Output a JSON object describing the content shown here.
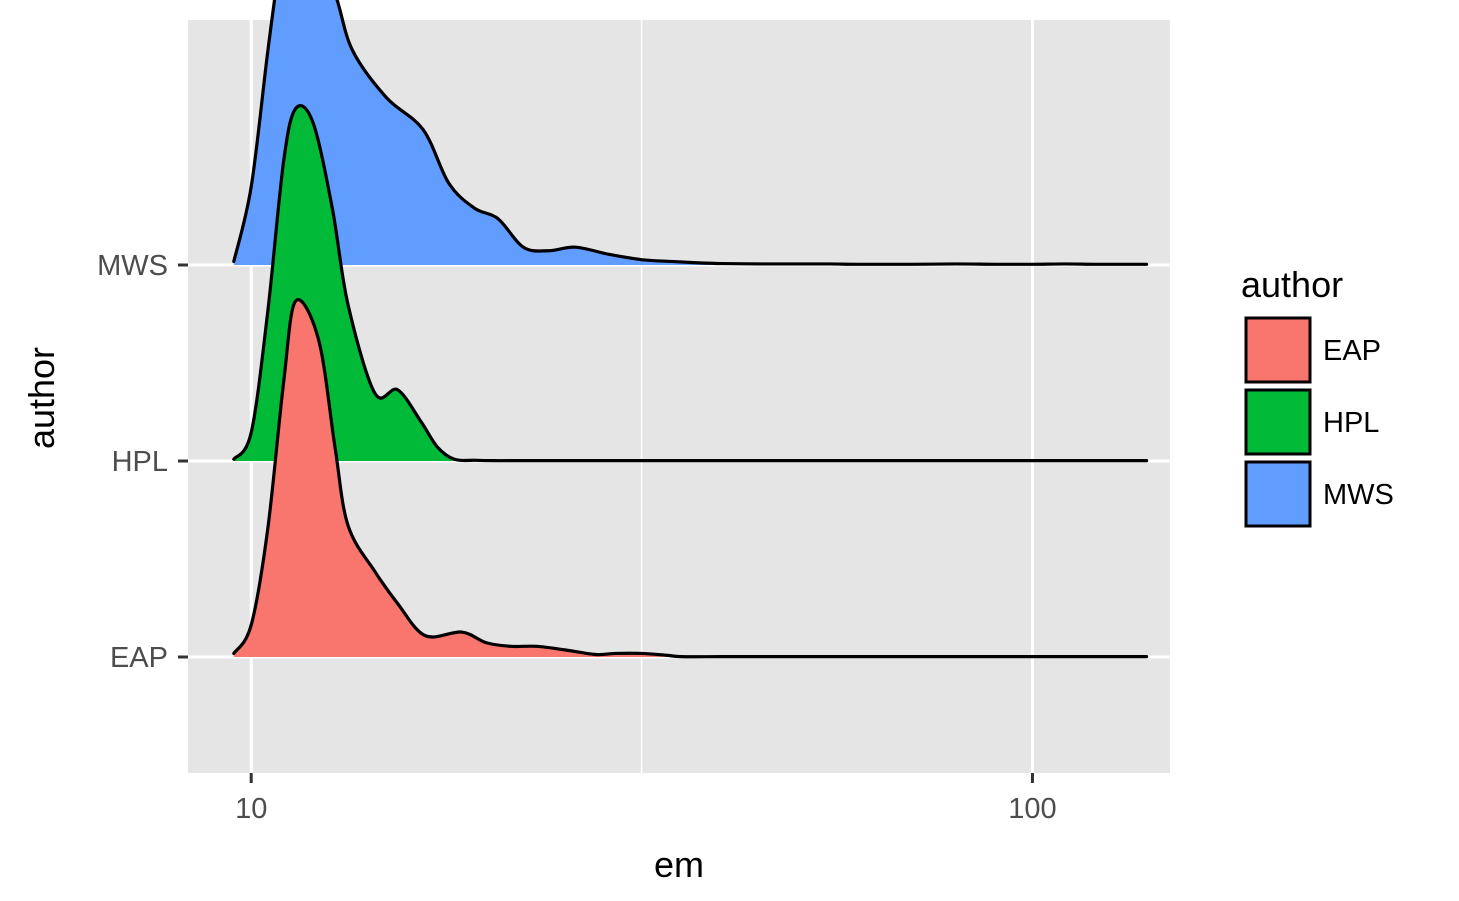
{
  "chart_data": {
    "type": "ridgeline-density",
    "xlabel": "em",
    "ylabel": "author",
    "x_scale": "log10",
    "xlim": [
      8.3,
      150
    ],
    "x_ticks": [
      {
        "value": 10,
        "label": "10"
      },
      {
        "value": 100,
        "label": "100"
      }
    ],
    "x_minor_ticks": [
      31.6
    ],
    "categories": [
      "EAP",
      "HPL",
      "MWS"
    ],
    "grid": true,
    "legend": {
      "title": "author",
      "position": "right",
      "entries": [
        {
          "label": "EAP",
          "color": "#F8766D"
        },
        {
          "label": "HPL",
          "color": "#00BA38"
        },
        {
          "label": "MWS",
          "color": "#619CFF"
        }
      ]
    },
    "series": [
      {
        "name": "EAP",
        "color": "#F8766D",
        "x": [
          9.5,
          10.0,
          10.5,
          11.0,
          11.4,
          12.2,
          12.8,
          13.3,
          14.4,
          15.4,
          16.7,
          18.6,
          20.0,
          21.5,
          23.2,
          25.2,
          27.6,
          29.2,
          31.6,
          34.0,
          35.5,
          40,
          45,
          50,
          55,
          60,
          70,
          80,
          90,
          100,
          110,
          120,
          130,
          140
        ],
        "density": [
          0.01,
          0.09,
          0.36,
          0.77,
          1.0,
          0.89,
          0.59,
          0.37,
          0.24,
          0.15,
          0.06,
          0.07,
          0.04,
          0.03,
          0.03,
          0.02,
          0.007,
          0.01,
          0.01,
          0.005,
          0.001,
          0.001,
          0.001,
          0.001,
          0.001,
          0.001,
          0.001,
          0.001,
          0.001,
          0.001,
          0.001,
          0.001,
          0.001,
          0.001
        ]
      },
      {
        "name": "HPL",
        "color": "#00BA38",
        "x": [
          9.5,
          10.0,
          10.5,
          11.0,
          11.4,
          12.0,
          12.7,
          13.3,
          14.4,
          15.4,
          16.5,
          17.3,
          18.2,
          19.4,
          20.5,
          22.0,
          25,
          30,
          40,
          50,
          60,
          70,
          80,
          90,
          100,
          110,
          120,
          130,
          140
        ],
        "density": [
          0.005,
          0.08,
          0.42,
          0.84,
          0.99,
          0.95,
          0.71,
          0.44,
          0.19,
          0.2,
          0.11,
          0.04,
          0.005,
          0.002,
          0.001,
          0.001,
          0.001,
          0.001,
          0.001,
          0.001,
          0.001,
          0.001,
          0.001,
          0.001,
          0.001,
          0.001,
          0.001,
          0.001,
          0.001
        ]
      },
      {
        "name": "MWS",
        "color": "#619CFF",
        "x": [
          9.5,
          10.0,
          10.5,
          10.9,
          11.2,
          11.6,
          12.2,
          12.9,
          13.5,
          14.9,
          16.6,
          17.9,
          19.3,
          20.7,
          22.3,
          24.0,
          26.0,
          28.7,
          31.6,
          34.5,
          37.4,
          40,
          45,
          50,
          55,
          60,
          70,
          80,
          90,
          100,
          110,
          120,
          130,
          140
        ],
        "density": [
          0.01,
          0.22,
          0.6,
          0.86,
          0.98,
          1.0,
          0.92,
          0.74,
          0.6,
          0.47,
          0.38,
          0.23,
          0.16,
          0.13,
          0.05,
          0.04,
          0.05,
          0.03,
          0.015,
          0.01,
          0.006,
          0.004,
          0.003,
          0.003,
          0.003,
          0.002,
          0.002,
          0.003,
          0.002,
          0.002,
          0.003,
          0.002,
          0.002,
          0.002
        ]
      }
    ]
  }
}
